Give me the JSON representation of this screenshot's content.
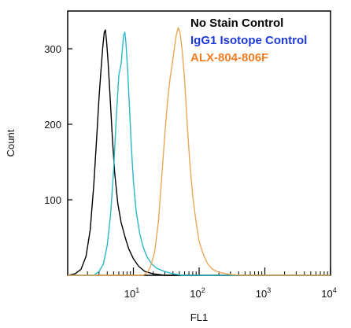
{
  "chart_data": {
    "type": "line",
    "xlabel": "FL1",
    "ylabel": "Count",
    "x_scale": "log",
    "xlim": [
      1,
      10000
    ],
    "ylim": [
      0,
      350
    ],
    "y_ticks": [
      100,
      200,
      300
    ],
    "x_ticks": [
      {
        "value": 10,
        "base": "10",
        "exp": "1"
      },
      {
        "value": 100,
        "base": "10",
        "exp": "2"
      },
      {
        "value": 1000,
        "base": "10",
        "exp": "3"
      },
      {
        "value": 10000,
        "base": "10",
        "exp": "4"
      }
    ],
    "legend_position": "top-right",
    "series": [
      {
        "name": "No Stain Control",
        "color": "#000000",
        "points": [
          [
            1,
            0
          ],
          [
            1.3,
            2
          ],
          [
            1.6,
            8
          ],
          [
            1.9,
            25
          ],
          [
            2.2,
            60
          ],
          [
            2.5,
            120
          ],
          [
            2.8,
            190
          ],
          [
            3.0,
            235
          ],
          [
            3.2,
            270
          ],
          [
            3.4,
            300
          ],
          [
            3.6,
            322
          ],
          [
            3.75,
            325
          ],
          [
            3.9,
            310
          ],
          [
            4.1,
            285
          ],
          [
            4.4,
            240
          ],
          [
            4.8,
            180
          ],
          [
            5.2,
            135
          ],
          [
            5.8,
            95
          ],
          [
            6.5,
            70
          ],
          [
            7.5,
            50
          ],
          [
            8.5,
            35
          ],
          [
            10,
            22
          ],
          [
            12,
            12
          ],
          [
            15,
            5
          ],
          [
            20,
            2
          ],
          [
            30,
            0
          ],
          [
            10000,
            0
          ]
        ]
      },
      {
        "name": "IgG1 Isotope Control",
        "color": "#2ab7c7",
        "points": [
          [
            1,
            0
          ],
          [
            2.5,
            0
          ],
          [
            3,
            5
          ],
          [
            3.5,
            15
          ],
          [
            4,
            40
          ],
          [
            4.5,
            80
          ],
          [
            5,
            140
          ],
          [
            5.5,
            210
          ],
          [
            6,
            265
          ],
          [
            6.5,
            280
          ],
          [
            6.8,
            300
          ],
          [
            7.1,
            318
          ],
          [
            7.4,
            322
          ],
          [
            7.7,
            308
          ],
          [
            8.2,
            270
          ],
          [
            8.7,
            225
          ],
          [
            9.3,
            170
          ],
          [
            10,
            125
          ],
          [
            11,
            85
          ],
          [
            12.5,
            55
          ],
          [
            14,
            38
          ],
          [
            16,
            25
          ],
          [
            19,
            15
          ],
          [
            23,
            9
          ],
          [
            30,
            5
          ],
          [
            40,
            2
          ],
          [
            55,
            0
          ],
          [
            10000,
            0
          ]
        ]
      },
      {
        "name": "ALX-804-806F",
        "color": "#e8a857",
        "points": [
          [
            1,
            0
          ],
          [
            14,
            0
          ],
          [
            16,
            3
          ],
          [
            18,
            10
          ],
          [
            21,
            30
          ],
          [
            24,
            70
          ],
          [
            27,
            130
          ],
          [
            30,
            185
          ],
          [
            33,
            230
          ],
          [
            36,
            260
          ],
          [
            39,
            280
          ],
          [
            42,
            300
          ],
          [
            45,
            318
          ],
          [
            48,
            328
          ],
          [
            51,
            322
          ],
          [
            55,
            300
          ],
          [
            60,
            260
          ],
          [
            66,
            200
          ],
          [
            72,
            150
          ],
          [
            80,
            105
          ],
          [
            90,
            70
          ],
          [
            100,
            45
          ],
          [
            115,
            28
          ],
          [
            135,
            15
          ],
          [
            160,
            8
          ],
          [
            200,
            4
          ],
          [
            300,
            1
          ],
          [
            450,
            0
          ],
          [
            10000,
            0
          ]
        ]
      }
    ]
  }
}
